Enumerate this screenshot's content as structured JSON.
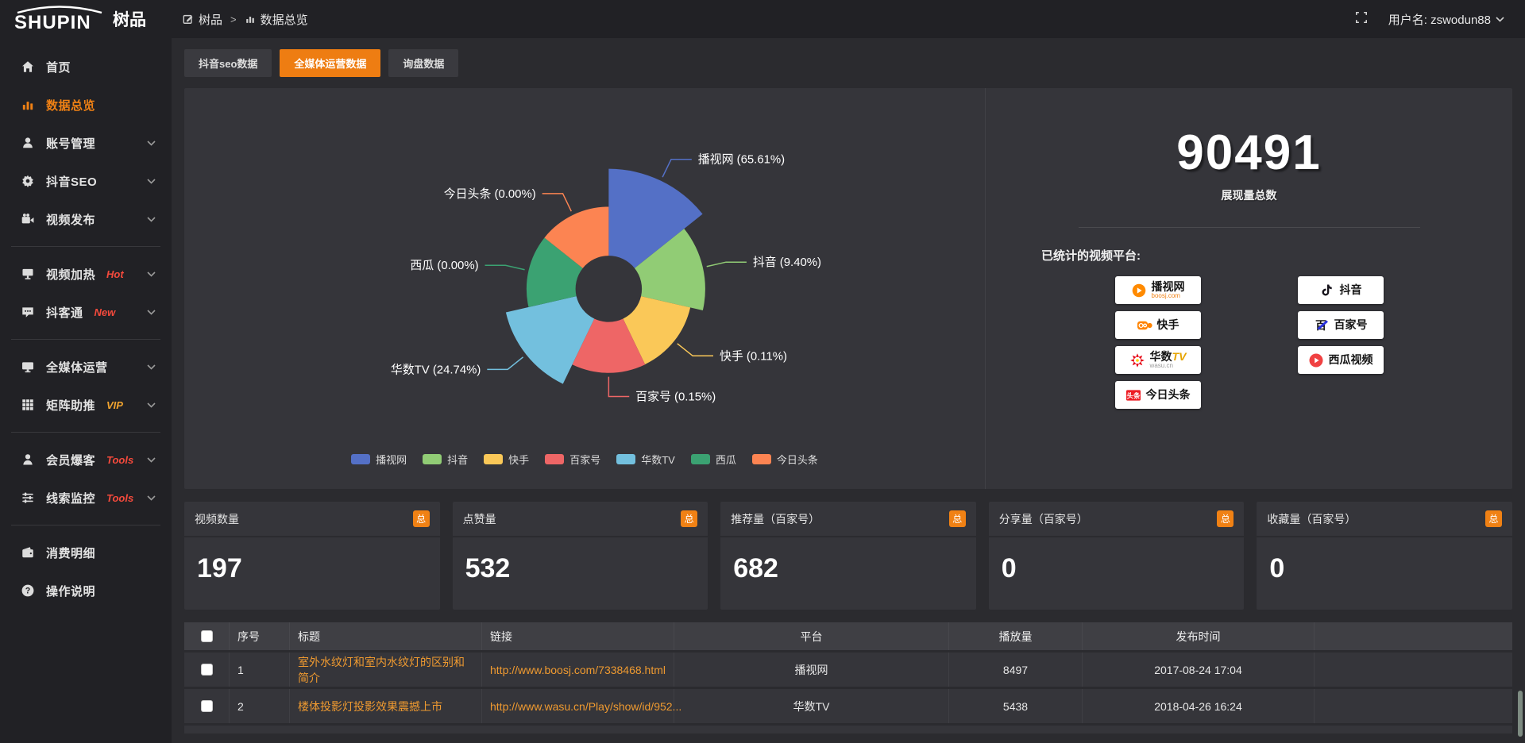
{
  "topbar": {
    "logo_text": "SHUPIN",
    "logo_cn": "树品",
    "breadcrumb": {
      "items": [
        "树品",
        "数据总览"
      ],
      "separator": ">"
    },
    "username": "用户名: zswodun88"
  },
  "sidebar": {
    "items": [
      {
        "label": "首页",
        "icon": "home"
      },
      {
        "label": "数据总览",
        "icon": "bar-chart",
        "active": true
      },
      {
        "label": "账号管理",
        "icon": "user",
        "expandable": true
      },
      {
        "label": "抖音SEO",
        "icon": "gear",
        "expandable": true
      },
      {
        "label": "视频发布",
        "icon": "video-camera",
        "expandable": true
      },
      {
        "divider": true
      },
      {
        "label": "视频加热",
        "icon": "screen",
        "badge": "Hot",
        "badge_color": "#f54a3c",
        "expandable": true
      },
      {
        "label": "抖客通",
        "icon": "chat",
        "badge": "New",
        "badge_color": "#f54a3c",
        "expandable": true
      },
      {
        "divider": true
      },
      {
        "label": "全媒体运营",
        "icon": "monitor",
        "expandable": true
      },
      {
        "label": "矩阵助推",
        "icon": "grid",
        "badge": "VIP",
        "badge_color": "#f0a32f",
        "expandable": true
      },
      {
        "divider": true
      },
      {
        "label": "会员爆客",
        "icon": "member",
        "badge": "Tools",
        "badge_color": "#f54a3c",
        "expandable": true
      },
      {
        "label": "线索监控",
        "icon": "sliders",
        "badge": "Tools",
        "badge_color": "#f54a3c",
        "expandable": true
      },
      {
        "divider": true
      },
      {
        "label": "消费明细",
        "icon": "wallet"
      },
      {
        "label": "操作说明",
        "icon": "question"
      }
    ]
  },
  "tabs": [
    {
      "label": "抖音seo数据",
      "active": false
    },
    {
      "label": "全媒体运营数据",
      "active": true
    },
    {
      "label": "询盘数据",
      "active": false
    }
  ],
  "chart_data": {
    "type": "pie",
    "subtype": "nightingale-rose",
    "labels": [
      "播视网",
      "抖音",
      "快手",
      "百家号",
      "华数TV",
      "西瓜",
      "今日头条"
    ],
    "values": [
      65.61,
      9.4,
      0.11,
      0.15,
      24.74,
      0.0,
      0.0
    ],
    "unit": "%",
    "colors": [
      "#5470c6",
      "#91cc75",
      "#fac858",
      "#ee6666",
      "#73c0de",
      "#3ba272",
      "#fc8452"
    ],
    "legend": [
      "播视网",
      "抖音",
      "快手",
      "百家号",
      "华数TV",
      "西瓜",
      "今日头条"
    ],
    "legend_position": "bottom",
    "label_format": "{name} ({value}%)"
  },
  "summary": {
    "total_value": "90491",
    "total_label": "展现量总数",
    "platforms_title": "已统计的视频平台:",
    "platform_columns": [
      [
        {
          "name": "播视网",
          "sub": "boosj.com",
          "sub_color": "#f08114",
          "logo": "boosj"
        },
        {
          "name": "快手",
          "logo": "kuaishou"
        },
        {
          "name": "华数",
          "name_accent": "TV",
          "sub": "wasu.cn",
          "sub_color": "#9a9a9a",
          "logo": "wasu"
        },
        {
          "name": "今日头条",
          "logo": "toutiao"
        }
      ],
      [
        {
          "name": "抖音",
          "logo": "douyin"
        },
        {
          "name": "百家号",
          "logo": "baijiahao"
        },
        {
          "name": "西瓜视频",
          "logo": "xigua"
        }
      ]
    ]
  },
  "stat_cards": [
    {
      "label": "视频数量",
      "badge": "总",
      "value": "197"
    },
    {
      "label": "点赞量",
      "badge": "总",
      "value": "532"
    },
    {
      "label": "推荐量（百家号）",
      "badge": "总",
      "value": "682"
    },
    {
      "label": "分享量（百家号）",
      "badge": "总",
      "value": "0"
    },
    {
      "label": "收藏量（百家号）",
      "badge": "总",
      "value": "0"
    }
  ],
  "table": {
    "headers": [
      "序号",
      "标题",
      "链接",
      "平台",
      "播放量",
      "发布时间"
    ],
    "rows": [
      {
        "num": "1",
        "title": "室外水纹灯和室内水纹灯的区别和简介",
        "link": "http://www.boosj.com/7338468.html",
        "platform": "播视网",
        "views": "8497",
        "time": "2017-08-24 17:04"
      },
      {
        "num": "2",
        "title": "楼体投影灯投影效果震撼上市",
        "link": "http://www.wasu.cn/Play/show/id/952...",
        "platform": "华数TV",
        "views": "5438",
        "time": "2018-04-26 16:24"
      }
    ]
  }
}
